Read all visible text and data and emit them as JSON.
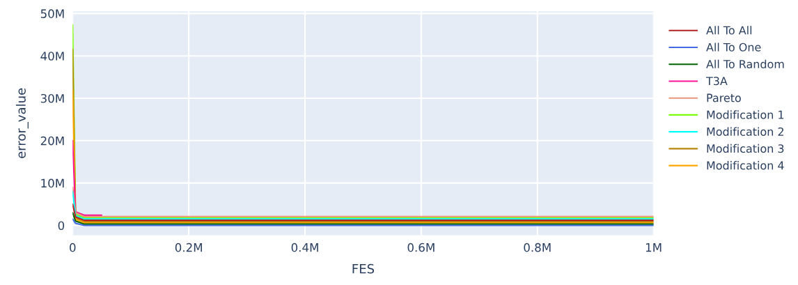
{
  "chart_data": {
    "type": "line",
    "xlabel": "FES",
    "ylabel": "error_value",
    "xlim": [
      0,
      1000000
    ],
    "ylim": [
      -2300000,
      50500000
    ],
    "xticks": [
      0,
      {
        "value": 200000,
        "label": "0.2M"
      },
      {
        "value": 400000,
        "label": "0.4M"
      },
      {
        "value": 600000,
        "label": "0.6M"
      },
      {
        "value": 800000,
        "label": "0.8M"
      },
      {
        "value": 1000000,
        "label": "1M"
      }
    ],
    "yticks": [
      0,
      {
        "value": 10000000,
        "label": "10M"
      },
      {
        "value": 20000000,
        "label": "20M"
      },
      {
        "value": 30000000,
        "label": "30M"
      },
      {
        "value": 40000000,
        "label": "40M"
      },
      {
        "value": 50000000,
        "label": "50M"
      }
    ],
    "grid": true,
    "legend": "right",
    "line_style": "solid",
    "marker": "none",
    "x": [
      0,
      5000,
      20000,
      1000000
    ],
    "series": [
      {
        "name": "All To All",
        "color": "#b22222",
        "values": [
          5000000,
          2000000,
          1200000,
          1200000
        ]
      },
      {
        "name": "All To One",
        "color": "#4169e1",
        "values": [
          1500000,
          500000,
          0,
          0
        ]
      },
      {
        "name": "All To Random",
        "color": "#006400",
        "values": [
          3000000,
          1000000,
          300000,
          300000
        ]
      },
      {
        "name": "T3A",
        "color": "#ff1493",
        "x": [
          0,
          5000,
          20000,
          50000
        ],
        "values": [
          20000000,
          3200000,
          2400000,
          2400000
        ]
      },
      {
        "name": "Pareto",
        "color": "#e9967a",
        "values": [
          9000000,
          3000000,
          2100000,
          2100000
        ]
      },
      {
        "name": "Modification 1",
        "color": "#7cfc00",
        "values": [
          47300000,
          2600000,
          1800000,
          1800000
        ]
      },
      {
        "name": "Modification 2",
        "color": "#00ffff",
        "values": [
          8000000,
          2300000,
          1500000,
          1500000
        ]
      },
      {
        "name": "Modification 3",
        "color": "#b8860b",
        "values": [
          41500000,
          1700000,
          900000,
          900000
        ]
      },
      {
        "name": "Modification 4",
        "color": "#ffa500",
        "values": [
          31800000,
          1400000,
          600000,
          600000
        ]
      }
    ]
  }
}
